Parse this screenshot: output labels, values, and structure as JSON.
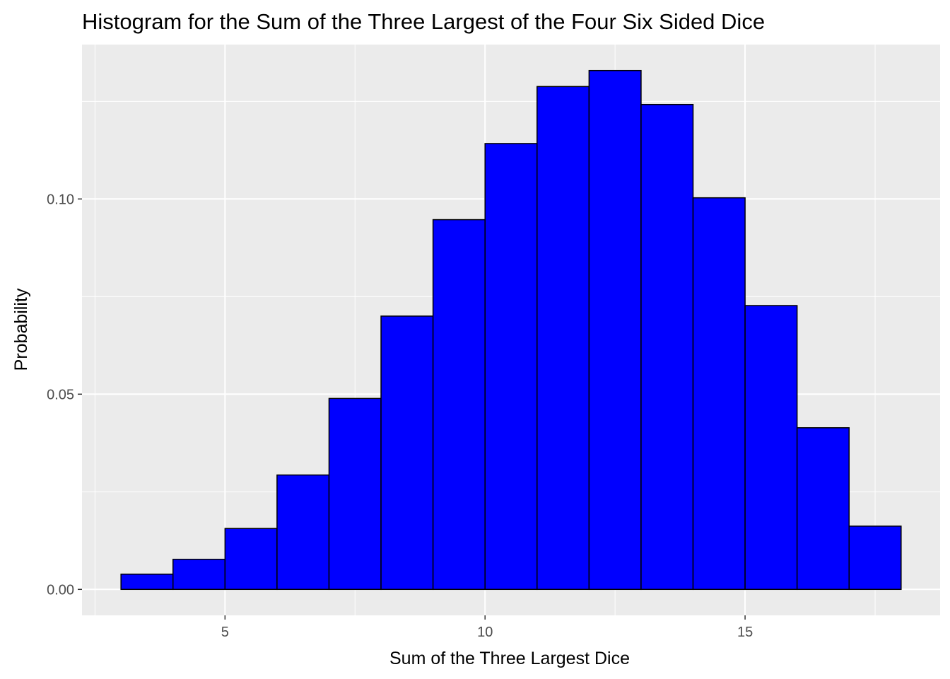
{
  "chart_data": {
    "type": "bar",
    "title": "Histogram for the Sum of the Three Largest of the Four Six Sided Dice",
    "xlabel": "Sum of the Three Largest Dice",
    "ylabel": "Probability",
    "bins": [
      {
        "x_start": 3,
        "x_end": 4,
        "value": 0.0039
      },
      {
        "x_start": 4,
        "x_end": 5,
        "value": 0.0077
      },
      {
        "x_start": 5,
        "x_end": 6,
        "value": 0.0156
      },
      {
        "x_start": 6,
        "x_end": 7,
        "value": 0.0293
      },
      {
        "x_start": 7,
        "x_end": 8,
        "value": 0.0489
      },
      {
        "x_start": 8,
        "x_end": 9,
        "value": 0.07
      },
      {
        "x_start": 9,
        "x_end": 10,
        "value": 0.0947
      },
      {
        "x_start": 10,
        "x_end": 11,
        "value": 0.1142
      },
      {
        "x_start": 11,
        "x_end": 12,
        "value": 0.1288
      },
      {
        "x_start": 12,
        "x_end": 13,
        "value": 0.1329
      },
      {
        "x_start": 13,
        "x_end": 14,
        "value": 0.1242
      },
      {
        "x_start": 14,
        "x_end": 15,
        "value": 0.1003
      },
      {
        "x_start": 15,
        "x_end": 16,
        "value": 0.0727
      },
      {
        "x_start": 16,
        "x_end": 17,
        "value": 0.0414
      },
      {
        "x_start": 17,
        "x_end": 18,
        "value": 0.0162
      }
    ],
    "xlim": [
      2.25,
      18.75
    ],
    "ylim": [
      -0.00665,
      0.13955
    ],
    "x_ticks": [
      5,
      10,
      15
    ],
    "x_tick_labels": [
      "5",
      "10",
      "15"
    ],
    "y_ticks": [
      0,
      0.05,
      0.1
    ],
    "y_tick_labels": [
      "0.00",
      "0.05",
      "0.10"
    ],
    "grid": true,
    "colors": {
      "bar_fill": "#0000ff",
      "bar_outline": "#000000",
      "panel_background": "#ebebeb",
      "grid_line": "#ffffff",
      "tick_label": "#4d4d4d"
    }
  }
}
